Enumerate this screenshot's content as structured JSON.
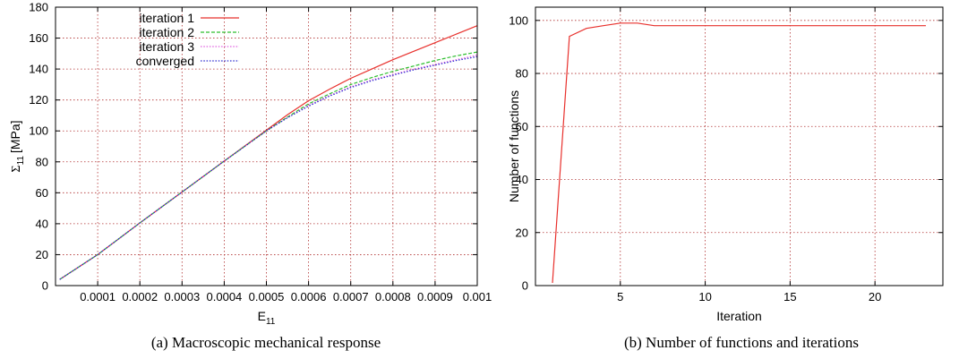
{
  "chart_data": [
    {
      "type": "line",
      "title": "",
      "xlabel": "E",
      "xlabel_sub": "11",
      "ylabel": "Σ",
      "ylabel_sub": "11",
      "ylabel_unit": "[MPa]",
      "xlim": [
        0,
        0.001
      ],
      "ylim": [
        0,
        180
      ],
      "xticks": [
        "0.0001",
        "0.0002",
        "0.0003",
        "0.0004",
        "0.0005",
        "0.0006",
        "0.0007",
        "0.0008",
        "0.0009",
        "0.001"
      ],
      "xtick_values": [
        0.0001,
        0.0002,
        0.0003,
        0.0004,
        0.0005,
        0.0006,
        0.0007,
        0.0008,
        0.0009,
        0.001
      ],
      "yticks": [
        "0",
        "20",
        "40",
        "60",
        "80",
        "100",
        "120",
        "140",
        "160",
        "180"
      ],
      "ytick_values": [
        0,
        20,
        40,
        60,
        80,
        100,
        120,
        140,
        160,
        180
      ],
      "grid": true,
      "legend": "top-left",
      "series": [
        {
          "name": "iteration 1",
          "color": "#e8302c",
          "style": "solid",
          "x": [
            1e-05,
            0.0001,
            0.0002,
            0.0003,
            0.0004,
            0.0005,
            0.00055,
            0.0006,
            0.00065,
            0.0007,
            0.00075,
            0.0008,
            0.00085,
            0.0009,
            0.00095,
            0.001
          ],
          "y": [
            4,
            20,
            40.5,
            60.5,
            80.5,
            100.5,
            110.5,
            119.5,
            127,
            134,
            140,
            146,
            151.5,
            157,
            162.5,
            168
          ]
        },
        {
          "name": "iteration 2",
          "color": "#2fbf2f",
          "style": "dashed",
          "x": [
            1e-05,
            0.0001,
            0.0002,
            0.0003,
            0.0004,
            0.0005,
            0.00055,
            0.0006,
            0.00065,
            0.0007,
            0.00075,
            0.0008,
            0.00085,
            0.0009,
            0.00095,
            0.001
          ],
          "y": [
            4,
            20,
            40.5,
            60.5,
            80.5,
            100,
            109,
            117.5,
            124,
            130,
            134.5,
            138.5,
            142,
            145.5,
            148.5,
            151
          ]
        },
        {
          "name": "iteration 3",
          "color": "#e060e0",
          "style": "dotted",
          "x": [
            1e-05,
            0.0001,
            0.0002,
            0.0003,
            0.0004,
            0.0005,
            0.00055,
            0.0006,
            0.00065,
            0.0007,
            0.00075,
            0.0008,
            0.00085,
            0.0009,
            0.00095,
            0.001
          ],
          "y": [
            4,
            20,
            40.5,
            60.5,
            80.5,
            100,
            108.5,
            116.5,
            123,
            128.5,
            133,
            136.5,
            140,
            143,
            146,
            149
          ]
        },
        {
          "name": "converged",
          "color": "#2a2ad0",
          "style": "dotted",
          "x": [
            1e-05,
            0.0001,
            0.0002,
            0.0003,
            0.0004,
            0.0005,
            0.00055,
            0.0006,
            0.00065,
            0.0007,
            0.00075,
            0.0008,
            0.00085,
            0.0009,
            0.00095,
            0.001
          ],
          "y": [
            4,
            20,
            40.5,
            60.5,
            80.5,
            100,
            108.5,
            116,
            122.5,
            128,
            132.5,
            136,
            139.5,
            142.5,
            145.5,
            148
          ]
        }
      ]
    },
    {
      "type": "line",
      "title": "",
      "xlabel": "Iteration",
      "ylabel": "Number of functions",
      "xlim": [
        0,
        24
      ],
      "ylim": [
        0,
        105
      ],
      "xticks": [
        "5",
        "10",
        "15",
        "20"
      ],
      "xtick_values": [
        5,
        10,
        15,
        20
      ],
      "yticks": [
        "0",
        "20",
        "40",
        "60",
        "80",
        "100"
      ],
      "ytick_values": [
        0,
        20,
        40,
        60,
        80,
        100
      ],
      "grid": true,
      "series": [
        {
          "color": "#e8302c",
          "style": "solid",
          "x": [
            1,
            2,
            3,
            4,
            5,
            6,
            7,
            8,
            9,
            10,
            11,
            12,
            13,
            14,
            15,
            16,
            17,
            18,
            19,
            20,
            21,
            22,
            23
          ],
          "y": [
            1,
            94,
            97,
            98,
            99,
            99,
            98,
            98,
            98,
            98,
            98,
            98,
            98,
            98,
            98,
            98,
            98,
            98,
            98,
            98,
            98,
            98,
            98
          ]
        }
      ]
    }
  ],
  "captions": {
    "a": "(a) Macroscopic mechanical response",
    "b": "(b) Number of functions and iterations"
  }
}
